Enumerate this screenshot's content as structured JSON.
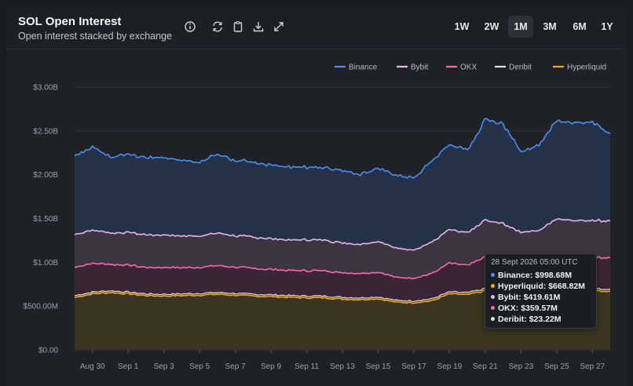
{
  "header": {
    "title": "SOL Open Interest",
    "subtitle": "Open interest stacked by exchange"
  },
  "toolbar": {
    "icons": [
      "info-icon",
      "refresh-icon",
      "clipboard-icon",
      "download-icon",
      "expand-icon"
    ]
  },
  "timeframes": [
    {
      "label": "1W",
      "active": false
    },
    {
      "label": "2W",
      "active": false
    },
    {
      "label": "1M",
      "active": true
    },
    {
      "label": "3M",
      "active": false
    },
    {
      "label": "6M",
      "active": false
    },
    {
      "label": "1Y",
      "active": false
    }
  ],
  "chart_data": {
    "type": "area",
    "stacked": true,
    "title": "SOL Open Interest",
    "subtitle": "Open interest stacked by exchange",
    "xlabel": "",
    "ylabel": "",
    "ylim": [
      0,
      3000000000
    ],
    "yticks": [
      0,
      500000000,
      1000000000,
      1500000000,
      2000000000,
      2500000000,
      3000000000
    ],
    "ytick_labels": [
      "$0.00",
      "$500.00M",
      "$1.00B",
      "$1.50B",
      "$2.00B",
      "$2.50B",
      "$3.00B"
    ],
    "grid": true,
    "legend_position": "top-right",
    "x_tick_labels": [
      "Aug 30",
      "Sep 1",
      "Sep 3",
      "Sep 5",
      "Sep 7",
      "Sep 9",
      "Sep 11",
      "Sep 13",
      "Sep 15",
      "Sep 17",
      "Sep 19",
      "Sep 21",
      "Sep 23",
      "Sep 25",
      "Sep 27"
    ],
    "x": [
      "Aug 29",
      "Aug 30",
      "Aug 31",
      "Sep 1",
      "Sep 2",
      "Sep 3",
      "Sep 4",
      "Sep 5",
      "Sep 6",
      "Sep 7",
      "Sep 8",
      "Sep 9",
      "Sep 10",
      "Sep 11",
      "Sep 12",
      "Sep 13",
      "Sep 14",
      "Sep 15",
      "Sep 16",
      "Sep 17",
      "Sep 18",
      "Sep 19",
      "Sep 20",
      "Sep 21",
      "Sep 22",
      "Sep 23",
      "Sep 24",
      "Sep 25",
      "Sep 26",
      "Sep 27",
      "Sep 28"
    ],
    "series_order_bottom_to_top": [
      "Hyperliquid",
      "Deribit",
      "OKX",
      "Bybit",
      "Binance"
    ],
    "series": [
      {
        "name": "Binance",
        "color": "#4f8df5",
        "values": [
          900,
          950,
          870,
          900,
          880,
          880,
          860,
          850,
          900,
          860,
          850,
          840,
          830,
          830,
          830,
          820,
          800,
          840,
          830,
          830,
          930,
          970,
          950,
          1140,
          1140,
          920,
          980,
          1120,
          1120,
          1120,
          999
        ]
      },
      {
        "name": "Bybit",
        "color": "#e6b4f0",
        "values": [
          375,
          380,
          360,
          375,
          370,
          370,
          362,
          360,
          370,
          360,
          355,
          350,
          348,
          350,
          350,
          340,
          335,
          350,
          330,
          325,
          355,
          380,
          370,
          420,
          410,
          370,
          380,
          420,
          420,
          420,
          420
        ]
      },
      {
        "name": "OKX",
        "color": "#f26ab3",
        "values": [
          320,
          330,
          300,
          310,
          300,
          305,
          298,
          300,
          310,
          300,
          295,
          290,
          285,
          288,
          290,
          280,
          280,
          285,
          265,
          260,
          290,
          330,
          310,
          360,
          350,
          310,
          320,
          365,
          360,
          360,
          360
        ]
      },
      {
        "name": "Deribit",
        "color": "#e8e0d8",
        "values": [
          20,
          20,
          20,
          20,
          20,
          20,
          20,
          20,
          20,
          20,
          20,
          20,
          20,
          20,
          20,
          20,
          20,
          20,
          20,
          20,
          22,
          22,
          22,
          23,
          23,
          23,
          23,
          23,
          23,
          23,
          23
        ]
      },
      {
        "name": "Hyperliquid",
        "color": "#f2a81d",
        "values": [
          600,
          640,
          655,
          640,
          620,
          615,
          620,
          625,
          635,
          625,
          615,
          610,
          600,
          595,
          595,
          580,
          575,
          585,
          545,
          540,
          560,
          640,
          630,
          675,
          660,
          640,
          640,
          685,
          675,
          675,
          669
        ]
      }
    ],
    "value_units": "$M",
    "tooltip": {
      "time": "28 Sept 2026 05:00 UTC",
      "rows": [
        {
          "name": "Binance",
          "value": "$998.68M",
          "color": "#4f8df5"
        },
        {
          "name": "Hyperliquid",
          "value": "$668.82M",
          "color": "#f2a81d"
        },
        {
          "name": "Bybit",
          "value": "$419.61M",
          "color": "#e6b4f0"
        },
        {
          "name": "OKX",
          "value": "$359.57M",
          "color": "#f26ab3"
        },
        {
          "name": "Deribit",
          "value": "$23.22M",
          "color": "#e8e0d8"
        }
      ]
    }
  }
}
